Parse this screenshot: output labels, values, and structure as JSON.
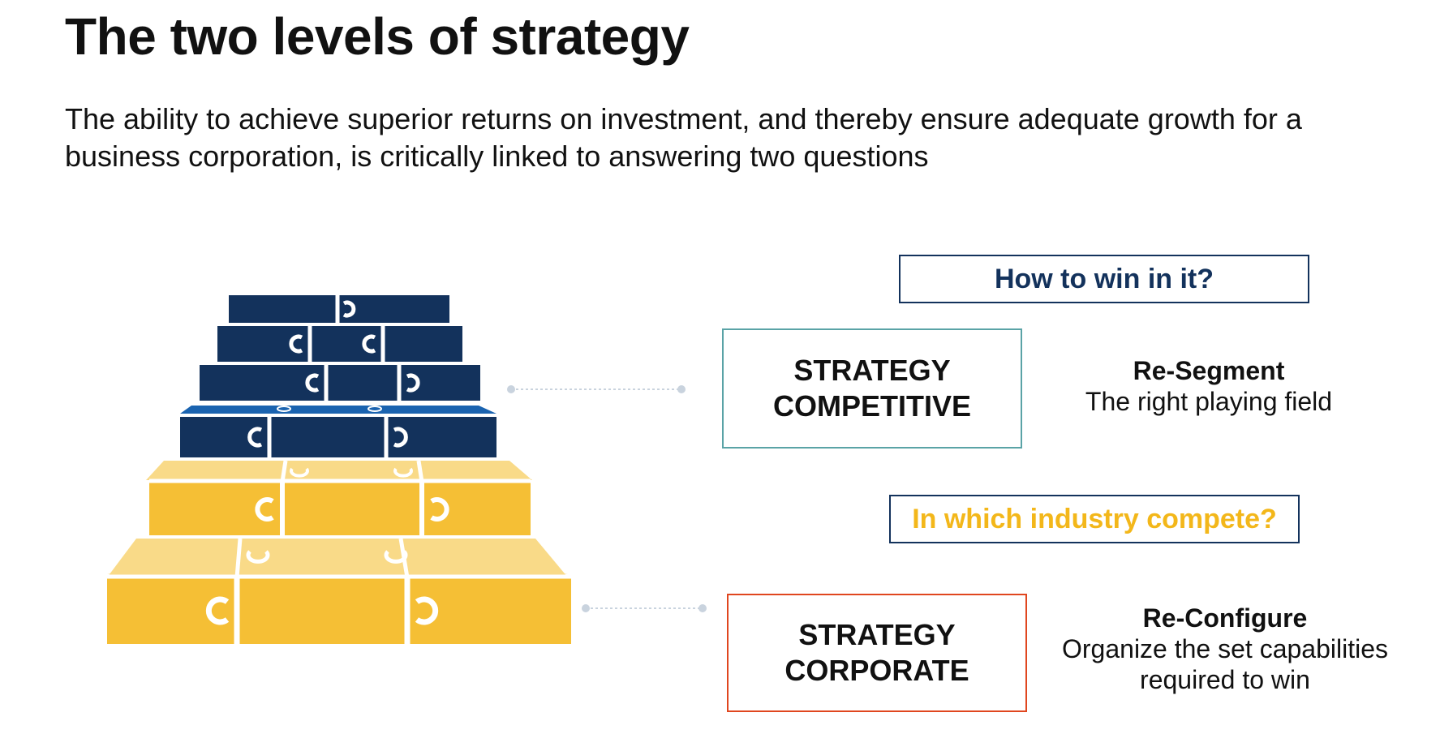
{
  "title": "The two levels of strategy",
  "subtitle": "The ability to achieve superior returns on investment, and thereby ensure adequate growth for a business corporation, is critically linked to answering two questions",
  "questions": {
    "competitive": "How to win in it?",
    "corporate": "In which industry compete?"
  },
  "levels": {
    "competitive": {
      "line1": "STRATEGY",
      "line2": "COMPETITIVE"
    },
    "corporate": {
      "line1": "STRATEGY",
      "line2": "CORPORATE"
    }
  },
  "descriptions": {
    "competitive": {
      "heading": "Re-Segment",
      "text": "The right playing field"
    },
    "corporate": {
      "heading": "Re-Configure",
      "text": "Organize the set capabilities required to win"
    }
  },
  "colors": {
    "navy": "#13325c",
    "blue_top": "#1a63b0",
    "yellow": "#f5bf35",
    "yellow_light": "#f9da88",
    "teal": "#5aa3a6",
    "orange_red": "#e0461f",
    "gold_text": "#f3b71a"
  }
}
